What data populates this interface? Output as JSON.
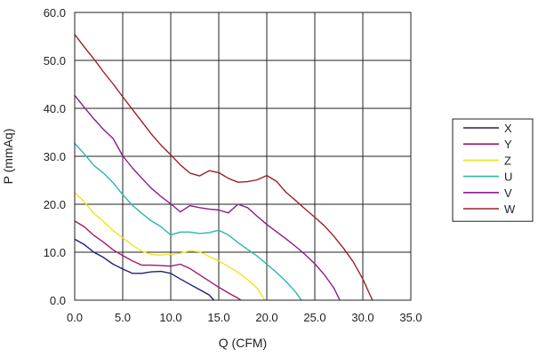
{
  "chart_data": {
    "type": "line",
    "title": "",
    "xlabel": "Q (CFM)",
    "ylabel": "P (mmAq)",
    "xlim": [
      0,
      35
    ],
    "ylim": [
      0,
      60
    ],
    "x_ticks": [
      "0.0",
      "5.0",
      "10.0",
      "15.0",
      "20.0",
      "25.0",
      "30.0",
      "35.0"
    ],
    "y_ticks": [
      "0.0",
      "10.0",
      "20.0",
      "30.0",
      "40.0",
      "50.0",
      "60.0"
    ],
    "grid": true,
    "legend_position": "right",
    "series": [
      {
        "name": "X",
        "color": "#1f1f7a",
        "points": [
          [
            0,
            12.7
          ],
          [
            1,
            11.6
          ],
          [
            2,
            10.0
          ],
          [
            3,
            8.9
          ],
          [
            4,
            7.5
          ],
          [
            5,
            6.5
          ],
          [
            6,
            5.6
          ],
          [
            7,
            5.6
          ],
          [
            8,
            5.9
          ],
          [
            9,
            6.0
          ],
          [
            10,
            5.6
          ],
          [
            11,
            4.4
          ],
          [
            12,
            3.3
          ],
          [
            13,
            2.2
          ],
          [
            14,
            1.1
          ],
          [
            14.5,
            0
          ]
        ]
      },
      {
        "name": "Y",
        "color": "#a0186a",
        "points": [
          [
            0,
            16.5
          ],
          [
            1,
            15.3
          ],
          [
            2,
            13.5
          ],
          [
            3,
            12.1
          ],
          [
            4,
            10.5
          ],
          [
            5,
            9.3
          ],
          [
            6,
            8.2
          ],
          [
            7,
            7.3
          ],
          [
            8,
            7.3
          ],
          [
            9,
            7.2
          ],
          [
            10,
            7.1
          ],
          [
            11,
            7.5
          ],
          [
            12,
            6.6
          ],
          [
            13,
            5.3
          ],
          [
            14,
            4.0
          ],
          [
            15,
            2.7
          ],
          [
            16,
            1.5
          ],
          [
            17,
            0.4
          ],
          [
            17.3,
            0
          ]
        ]
      },
      {
        "name": "Z",
        "color": "#f5e020",
        "points": [
          [
            0,
            22.4
          ],
          [
            1,
            20.5
          ],
          [
            2,
            18.1
          ],
          [
            3,
            16.4
          ],
          [
            4,
            14.5
          ],
          [
            5,
            13.0
          ],
          [
            6,
            11.5
          ],
          [
            7,
            10.2
          ],
          [
            8,
            9.5
          ],
          [
            9,
            9.4
          ],
          [
            10,
            9.6
          ],
          [
            11,
            9.8
          ],
          [
            12,
            10.3
          ],
          [
            13,
            10.1
          ],
          [
            14,
            9.1
          ],
          [
            15,
            8.2
          ],
          [
            16,
            7.0
          ],
          [
            17,
            5.8
          ],
          [
            18,
            4.3
          ],
          [
            19,
            2.5
          ],
          [
            19.8,
            0
          ]
        ]
      },
      {
        "name": "U",
        "color": "#2cb5b5",
        "points": [
          [
            0,
            32.7
          ],
          [
            1,
            30.5
          ],
          [
            2,
            28.1
          ],
          [
            3,
            26.5
          ],
          [
            4,
            24.5
          ],
          [
            5,
            22.0
          ],
          [
            6,
            19.8
          ],
          [
            7,
            18.1
          ],
          [
            8,
            16.5
          ],
          [
            9,
            15.3
          ],
          [
            10,
            13.6
          ],
          [
            11,
            14.2
          ],
          [
            12,
            14.2
          ],
          [
            13,
            13.9
          ],
          [
            14,
            14.1
          ],
          [
            15,
            14.6
          ],
          [
            16,
            13.6
          ],
          [
            17,
            12.0
          ],
          [
            18,
            10.6
          ],
          [
            19,
            9.2
          ],
          [
            20,
            7.5
          ],
          [
            21,
            5.8
          ],
          [
            22,
            3.9
          ],
          [
            23,
            1.7
          ],
          [
            23.6,
            0
          ]
        ]
      },
      {
        "name": "V",
        "color": "#8c1a8c",
        "points": [
          [
            0,
            42.7
          ],
          [
            1,
            40.2
          ],
          [
            2,
            37.8
          ],
          [
            3,
            35.6
          ],
          [
            4,
            33.7
          ],
          [
            5,
            30.1
          ],
          [
            6,
            27.6
          ],
          [
            7,
            25.4
          ],
          [
            8,
            23.3
          ],
          [
            9,
            21.6
          ],
          [
            10,
            20.1
          ],
          [
            11,
            18.4
          ],
          [
            12,
            19.7
          ],
          [
            13,
            19.3
          ],
          [
            14,
            19.0
          ],
          [
            15,
            18.8
          ],
          [
            16,
            18.2
          ],
          [
            17,
            20.0
          ],
          [
            18,
            19.3
          ],
          [
            19,
            17.5
          ],
          [
            20,
            15.8
          ],
          [
            21,
            14.3
          ],
          [
            22,
            12.8
          ],
          [
            23,
            11.2
          ],
          [
            24,
            9.5
          ],
          [
            25,
            7.6
          ],
          [
            26,
            5.3
          ],
          [
            27,
            2.5
          ],
          [
            27.6,
            0
          ]
        ]
      },
      {
        "name": "W",
        "color": "#9b2226",
        "points": [
          [
            0,
            55.4
          ],
          [
            1,
            52.8
          ],
          [
            2,
            50.3
          ],
          [
            3,
            47.6
          ],
          [
            4,
            45.1
          ],
          [
            5,
            42.4
          ],
          [
            6,
            39.8
          ],
          [
            7,
            37.2
          ],
          [
            8,
            34.6
          ],
          [
            9,
            32.3
          ],
          [
            10,
            30.3
          ],
          [
            11,
            28.2
          ],
          [
            12,
            26.5
          ],
          [
            13,
            25.9
          ],
          [
            14,
            27.0
          ],
          [
            15,
            26.6
          ],
          [
            16,
            25.4
          ],
          [
            17,
            24.6
          ],
          [
            18,
            24.7
          ],
          [
            19,
            25.1
          ],
          [
            20,
            26.0
          ],
          [
            21,
            24.8
          ],
          [
            22,
            22.5
          ],
          [
            23,
            20.8
          ],
          [
            24,
            19.0
          ],
          [
            25,
            17.3
          ],
          [
            26,
            15.5
          ],
          [
            27,
            13.3
          ],
          [
            28,
            10.8
          ],
          [
            29,
            8.0
          ],
          [
            30,
            4.4
          ],
          [
            31,
            0
          ]
        ]
      }
    ]
  }
}
